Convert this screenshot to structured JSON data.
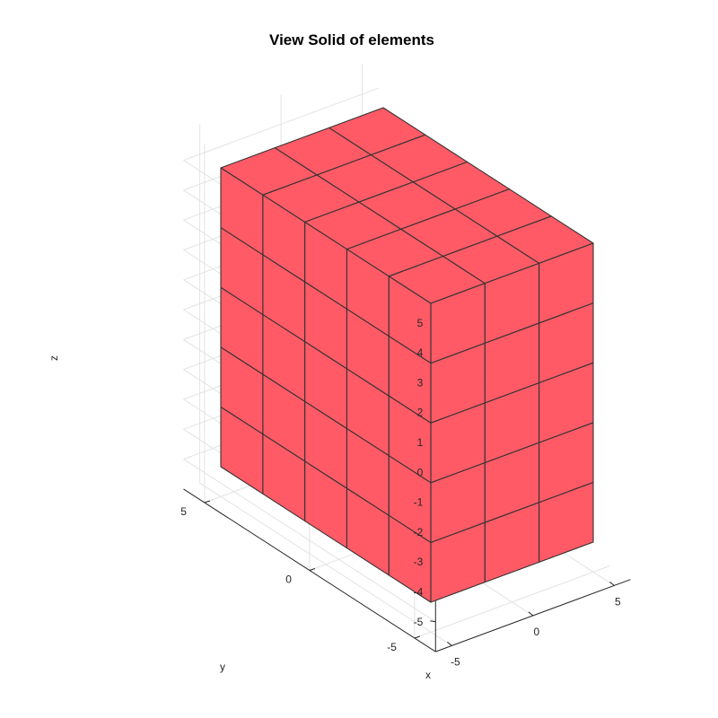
{
  "chart_data": {
    "type": "3d-solid",
    "title": "View Solid of elements",
    "xlabel": "x",
    "ylabel": "y",
    "zlabel": "z",
    "xlim": [
      -5,
      5
    ],
    "ylim": [
      -5,
      5
    ],
    "zlim": [
      -5,
      5
    ],
    "xticks": [
      "-5",
      "0",
      "5"
    ],
    "yticks": [
      "-5",
      "0",
      "5"
    ],
    "zticks": [
      "-5",
      "-4",
      "-3",
      "-2",
      "-1",
      "0",
      "1",
      "2",
      "3",
      "4",
      "5"
    ],
    "grid": true,
    "solid": {
      "x_range": [
        -5,
        5
      ],
      "y_range": [
        -5,
        5
      ],
      "z_range": [
        -5,
        5
      ],
      "elements_x": 3,
      "elements_y": 5,
      "elements_z": 5
    },
    "colors": {
      "face": "#ff5a66",
      "edge": "#333333"
    }
  }
}
